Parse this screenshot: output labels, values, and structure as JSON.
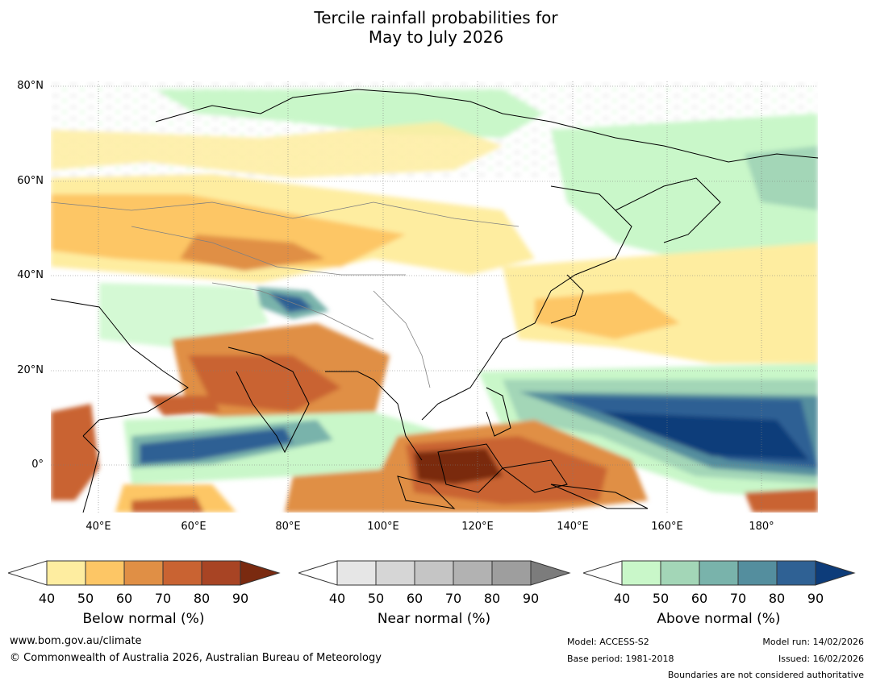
{
  "title": {
    "line1": "Tercile rainfall probabilities for",
    "line2": "May to July 2026"
  },
  "map": {
    "lat_labels": [
      "80°N",
      "60°N",
      "40°N",
      "20°N",
      "0°"
    ],
    "lon_labels": [
      "40°E",
      "60°E",
      "80°E",
      "100°E",
      "120°E",
      "140°E",
      "160°E",
      "180°"
    ],
    "ocean_color": "#ffffff",
    "land_coast_color": "#000000",
    "border_color": "#808080"
  },
  "legends": {
    "below": {
      "label": "Below normal (%)",
      "ticks": [
        "40",
        "50",
        "60",
        "70",
        "80",
        "90"
      ],
      "colors": [
        "#ffffff",
        "#feeda0",
        "#fdc665",
        "#e08f45",
        "#c96332",
        "#a84424",
        "#7a2a10"
      ]
    },
    "near": {
      "label": "Near normal (%)",
      "ticks": [
        "40",
        "50",
        "60",
        "70",
        "80",
        "90"
      ],
      "colors": [
        "#ffffff",
        "#e6e6e6",
        "#d6d6d6",
        "#c5c5c5",
        "#b2b2b2",
        "#9e9e9e",
        "#7c7c7c"
      ]
    },
    "above": {
      "label": "Above normal (%)",
      "ticks": [
        "40",
        "50",
        "60",
        "70",
        "80",
        "90"
      ],
      "colors": [
        "#ffffff",
        "#c9f7c9",
        "#a3d6b7",
        "#79b3ab",
        "#548e9e",
        "#2f6194",
        "#0d3c7a"
      ]
    }
  },
  "footer": {
    "website": "www.bom.gov.au/climate",
    "copyright": "© Commonwealth of Australia 2026, Australian Bureau of Meteorology",
    "model": "Model: ACCESS-S2",
    "base_period": "Base period: 1981-2018",
    "model_run": "Model run: 14/02/2026",
    "issued": "Issued: 16/02/2026",
    "disclaimer": "Boundaries are not considered authoritative"
  }
}
